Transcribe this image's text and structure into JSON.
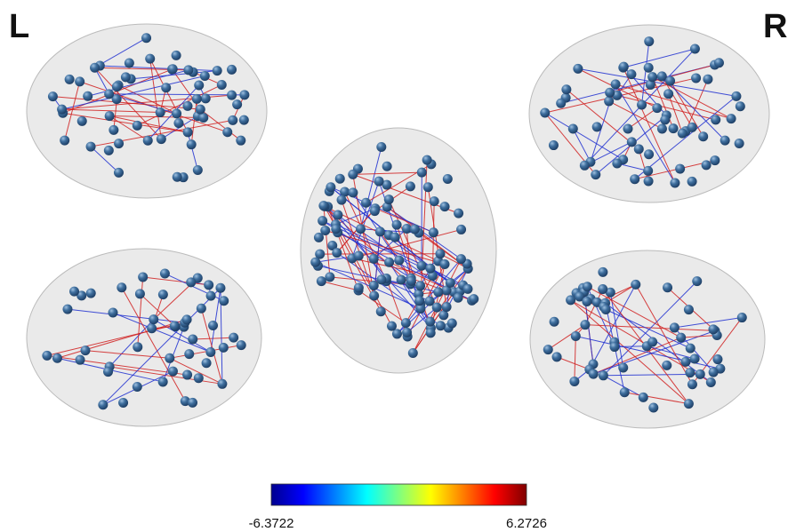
{
  "labels": {
    "left": "L",
    "right": "R"
  },
  "colorbar": {
    "min": -6.3722,
    "max": 6.2726
  }
}
